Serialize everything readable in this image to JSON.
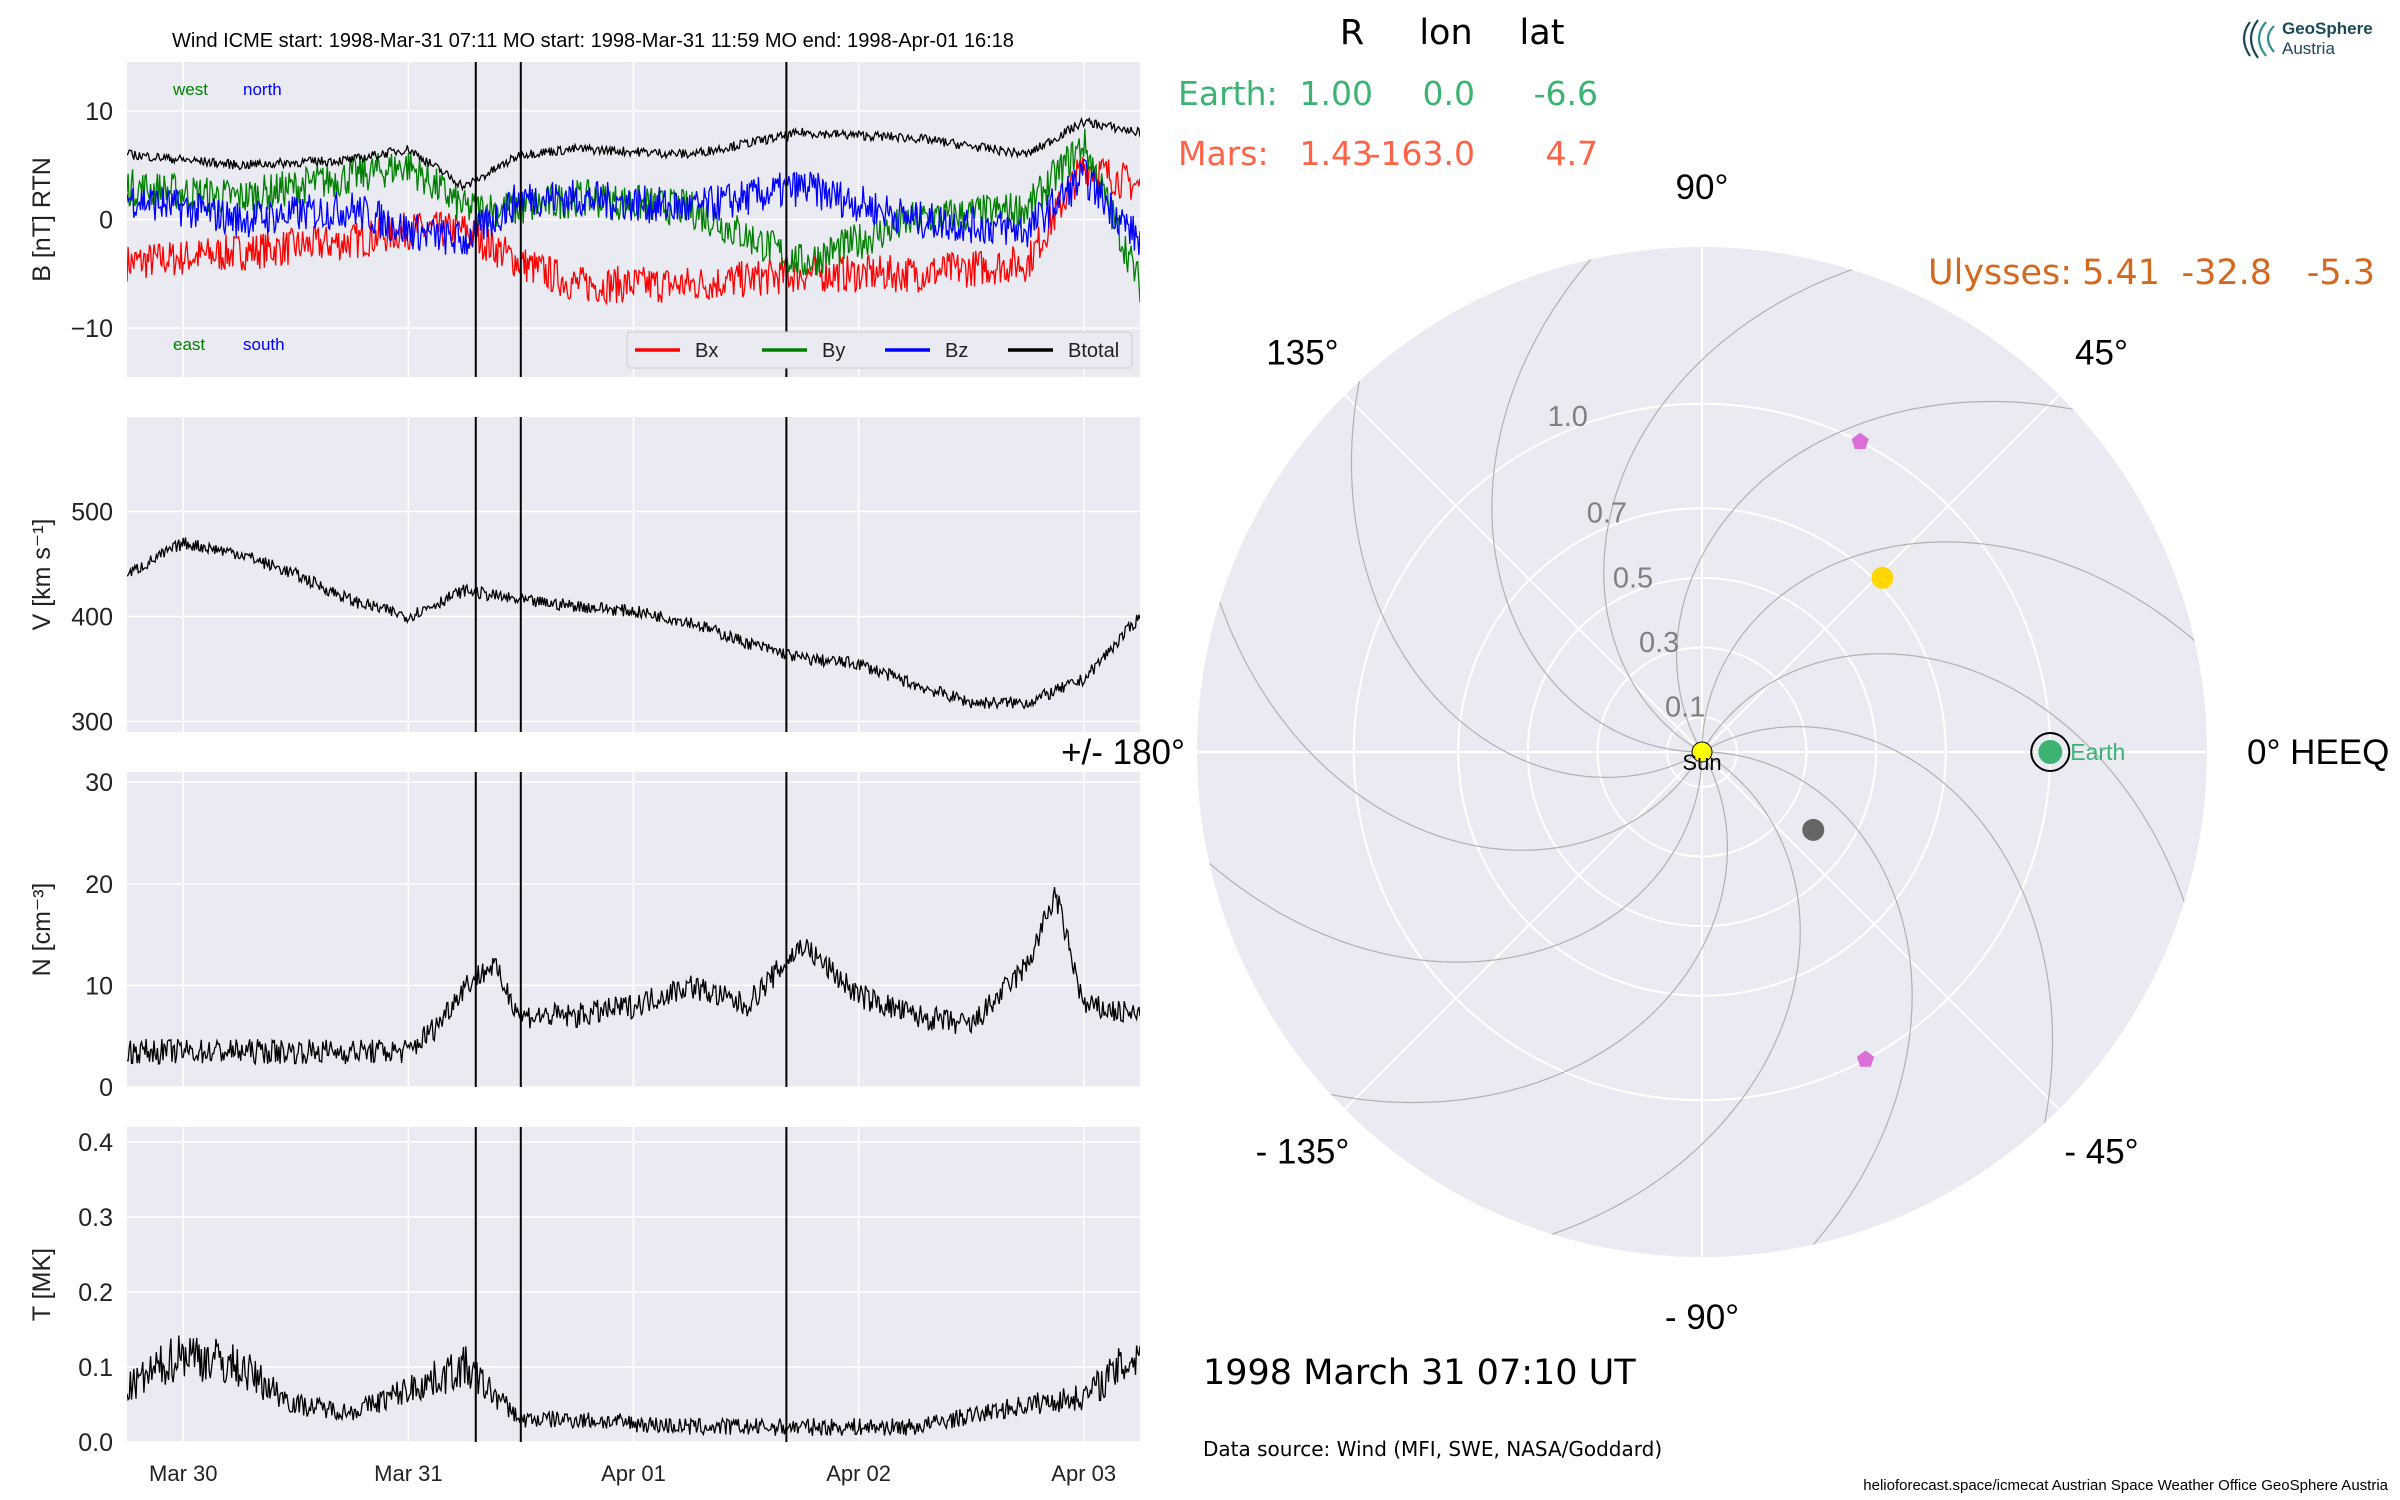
{
  "header": {
    "title": "Wind    ICME start: 1998-Mar-31 07:11   MO start: 1998-Mar-31 11:59   MO end: 1998-Apr-01 16:18"
  },
  "events": {
    "icme_start": "1998-03-31 07:11",
    "mo_start": "1998-03-31 11:59",
    "mo_end": "1998-04-01 16:18"
  },
  "chart_data": [
    {
      "type": "line",
      "ylabel": "B [nT] RTN",
      "ylim": [
        -14.5,
        14.5
      ],
      "yticks": [
        -10,
        0,
        10
      ],
      "ytick_labels": [
        "−10",
        "0",
        "10"
      ],
      "legend": [
        "Bx",
        "By",
        "Bz",
        "Btotal"
      ],
      "legend_position": "lower right",
      "corner_labels": {
        "west": "west",
        "north": "north",
        "east": "east",
        "south": "south"
      },
      "series": [
        {
          "name": "Bx",
          "color": "#ff0000",
          "x": [
            "03-29 18:00",
            "03-30 06:00",
            "03-30 18:00",
            "03-31 00:00",
            "03-31 06:00",
            "03-31 12:00",
            "03-31 18:00",
            "04-01 06:00",
            "04-01 18:00",
            "04-02 06:00",
            "04-02 18:00",
            "04-03 00:00",
            "04-03 06:00"
          ],
          "values": [
            -4,
            -3,
            -2,
            -1,
            -1,
            -4,
            -6,
            -6,
            -5,
            -5,
            -4,
            5,
            3
          ]
        },
        {
          "name": "By",
          "color": "#008000",
          "x": [
            "03-29 18:00",
            "03-30 06:00",
            "03-30 18:00",
            "03-31 00:00",
            "03-31 06:00",
            "03-31 12:00",
            "03-31 18:00",
            "04-01 06:00",
            "04-01 18:00",
            "04-02 06:00",
            "04-02 18:00",
            "04-03 00:00",
            "04-03 06:00"
          ],
          "values": [
            3,
            2,
            4,
            5,
            1,
            1,
            2,
            1,
            -4,
            0,
            1,
            7,
            -6
          ]
        },
        {
          "name": "Bz",
          "color": "#0000ff",
          "x": [
            "03-29 18:00",
            "03-30 06:00",
            "03-30 18:00",
            "03-31 00:00",
            "03-31 06:00",
            "03-31 12:00",
            "03-31 18:00",
            "04-01 06:00",
            "04-01 18:00",
            "04-02 06:00",
            "04-02 18:00",
            "04-03 00:00",
            "04-03 06:00"
          ],
          "values": [
            2,
            0,
            1,
            -1,
            -2,
            2,
            2,
            1,
            3,
            0,
            -1,
            4,
            -2
          ]
        },
        {
          "name": "Btotal",
          "color": "#000000",
          "x": [
            "03-29 18:00",
            "03-30 06:00",
            "03-30 18:00",
            "03-31 00:00",
            "03-31 06:00",
            "03-31 12:00",
            "03-31 18:00",
            "04-01 06:00",
            "04-01 18:00",
            "04-02 06:00",
            "04-02 18:00",
            "04-03 00:00",
            "04-03 06:00"
          ],
          "values": [
            6,
            5,
            5.5,
            6.5,
            3,
            6,
            6.5,
            6,
            8,
            7.5,
            6,
            9,
            8
          ]
        }
      ]
    },
    {
      "type": "line",
      "ylabel": "V [km s⁻¹]",
      "ylim": [
        290,
        590
      ],
      "yticks": [
        300,
        400,
        500
      ],
      "ytick_labels": [
        "300",
        "400",
        "500"
      ],
      "series": [
        {
          "name": "V",
          "color": "#000000",
          "x": [
            "03-29 18:00",
            "03-30 00:00",
            "03-30 06:00",
            "03-30 12:00",
            "03-30 18:00",
            "03-31 00:00",
            "03-31 06:00",
            "03-31 12:00",
            "03-31 18:00",
            "04-01 00:00",
            "04-01 06:00",
            "04-01 12:00",
            "04-01 18:00",
            "04-02 00:00",
            "04-02 06:00",
            "04-02 12:00",
            "04-02 18:00",
            "04-03 00:00",
            "04-03 06:00"
          ],
          "values": [
            440,
            470,
            460,
            440,
            415,
            400,
            425,
            415,
            410,
            405,
            395,
            375,
            360,
            355,
            335,
            318,
            318,
            340,
            400
          ]
        }
      ]
    },
    {
      "type": "line",
      "ylabel": "N [cm⁻³]",
      "ylim": [
        0,
        31
      ],
      "yticks": [
        0,
        10,
        20,
        30
      ],
      "ytick_labels": [
        "0",
        "10",
        "20",
        "30"
      ],
      "series": [
        {
          "name": "N",
          "color": "#000000",
          "x": [
            "03-29 18:00",
            "03-30 06:00",
            "03-30 18:00",
            "03-31 00:00",
            "03-31 03:00",
            "03-31 06:00",
            "03-31 09:00",
            "03-31 12:00",
            "03-31 18:00",
            "04-01 00:00",
            "04-01 06:00",
            "04-01 12:00",
            "04-01 18:00",
            "04-02 00:00",
            "04-02 06:00",
            "04-02 12:00",
            "04-02 18:00",
            "04-02 21:00",
            "04-03 00:00",
            "04-03 06:00"
          ],
          "values": [
            3.5,
            3.5,
            3.5,
            3.5,
            6,
            10,
            12,
            7,
            7,
            8,
            10,
            8,
            14,
            9,
            7,
            6,
            12,
            19,
            8,
            7
          ]
        }
      ]
    },
    {
      "type": "line",
      "ylabel": "T [MK]",
      "ylim": [
        0,
        0.42
      ],
      "yticks": [
        0.0,
        0.1,
        0.2,
        0.3,
        0.4
      ],
      "ytick_labels": [
        "0.0",
        "0.1",
        "0.2",
        "0.3",
        "0.4"
      ],
      "xtick_labels": [
        "Mar 30",
        "Mar 31",
        "Apr 01",
        "Apr 02",
        "Apr 03"
      ],
      "series": [
        {
          "name": "T",
          "color": "#000000",
          "x": [
            "03-29 18:00",
            "03-30 00:00",
            "03-30 06:00",
            "03-30 12:00",
            "03-30 18:00",
            "03-31 00:00",
            "03-31 06:00",
            "03-31 12:00",
            "03-31 18:00",
            "04-01 06:00",
            "04-01 18:00",
            "04-02 06:00",
            "04-02 18:00",
            "04-03 00:00",
            "04-03 06:00"
          ],
          "values": [
            0.07,
            0.12,
            0.1,
            0.05,
            0.04,
            0.07,
            0.1,
            0.03,
            0.03,
            0.02,
            0.02,
            0.02,
            0.05,
            0.06,
            0.12
          ]
        }
      ]
    },
    {
      "type": "scatter",
      "projection": "polar",
      "rlim": [
        0,
        1.45
      ],
      "r_tick_labels": [
        "0.1",
        "0.3",
        "0.5",
        "0.7",
        "1.0"
      ],
      "angle_labels": [
        "0° HEEQ",
        "45°",
        "90°",
        "135°",
        "+/- 180°",
        "- 135°",
        "- 90°",
        "- 45°"
      ],
      "points": [
        {
          "name": "Sun",
          "r": 0.0,
          "lon": 0.0,
          "color": "#ffff00"
        },
        {
          "name": "Earth",
          "r": 1.0,
          "lon": 0.0,
          "color": "#3cb371"
        },
        {
          "name": "",
          "r": 0.72,
          "lon": 44.0,
          "color": "#ffd700"
        },
        {
          "name": "",
          "r": 0.39,
          "lon": -35.0,
          "color": "#666666"
        },
        {
          "name": "",
          "r": 1.0,
          "lon": 63.0,
          "color": "#da70d6",
          "marker": "pentagon"
        },
        {
          "name": "",
          "r": 1.0,
          "lon": -62.0,
          "color": "#da70d6",
          "marker": "pentagon"
        }
      ]
    }
  ],
  "bodies": [
    {
      "name": "Earth:",
      "R": "1.00",
      "lon": "0.0",
      "lat": "-6.6",
      "color": "#3cb371"
    },
    {
      "name": "Mars:",
      "R": "1.43",
      "lon": "-163.0",
      "lat": "4.7",
      "color": "#ff6347"
    },
    {
      "name": "Ulysses:",
      "R": "5.41",
      "lon": "-32.8",
      "lat": "-5.3",
      "color": "#d2691e"
    }
  ],
  "table_headers": [
    "R",
    "lon",
    "lat"
  ],
  "timestamp": "1998 March 31  07:10 UT",
  "data_source": "Data source: Wind (MFI, SWE, NASA/Goddard)",
  "footer_credit": "helioforecast.space/icmecat   Austrian Space Weather Office   GeoSphere Austria",
  "logo": {
    "line1": "GeoSphere",
    "line2": "Austria",
    "color": "#1a4a5a"
  },
  "colors": {
    "panel_bg": "#eaeaf2",
    "grid": "#ffffff"
  }
}
